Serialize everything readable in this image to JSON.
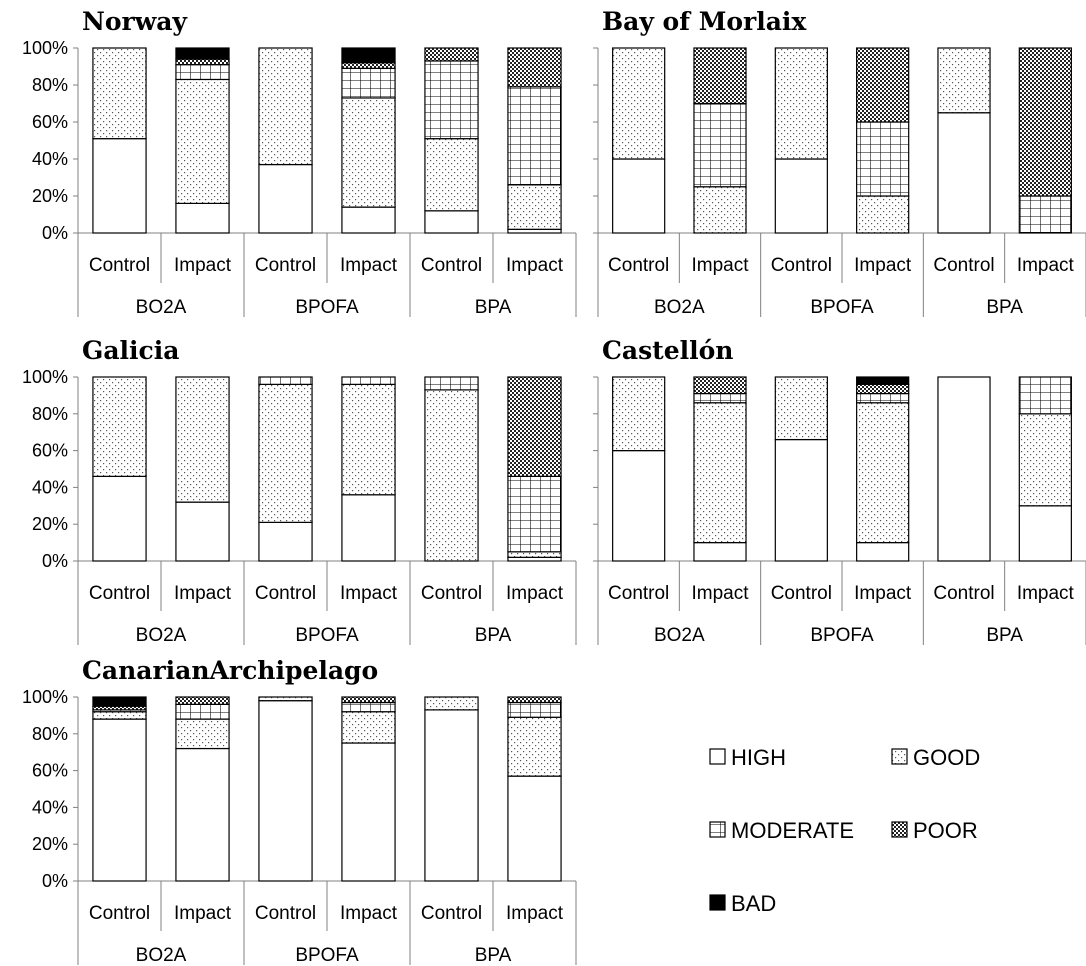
{
  "legend": [
    {
      "key": "HIGH",
      "label": "HIGH"
    },
    {
      "key": "GOOD",
      "label": "GOOD"
    },
    {
      "key": "MODERATE",
      "label": "MODERATE"
    },
    {
      "key": "POOR",
      "label": "POOR"
    },
    {
      "key": "BAD",
      "label": "BAD"
    }
  ],
  "chart_data": [
    {
      "type": "bar",
      "stacked": true,
      "title": "Norway",
      "groups": [
        "BO2A",
        "BPOFA",
        "BPA"
      ],
      "categories": [
        "Control",
        "Impact",
        "Control",
        "Impact",
        "Control",
        "Impact"
      ],
      "yticks": [
        "0%",
        "20%",
        "40%",
        "60%",
        "80%",
        "100%"
      ],
      "ylim": [
        0,
        100
      ],
      "series": [
        {
          "name": "HIGH",
          "values": [
            51,
            16,
            37,
            14,
            12,
            2
          ]
        },
        {
          "name": "GOOD",
          "values": [
            49,
            67,
            63,
            59,
            39,
            24
          ]
        },
        {
          "name": "MODERATE",
          "values": [
            0,
            8,
            0,
            16,
            42,
            53
          ]
        },
        {
          "name": "POOR",
          "values": [
            0,
            3,
            0,
            3,
            7,
            21
          ]
        },
        {
          "name": "BAD",
          "values": [
            0,
            6,
            0,
            8,
            0,
            0
          ]
        }
      ]
    },
    {
      "type": "bar",
      "stacked": true,
      "title": "Bay of Morlaix",
      "groups": [
        "BO2A",
        "BPOFA",
        "BPA"
      ],
      "categories": [
        "Control",
        "Impact",
        "Control",
        "Impact",
        "Control",
        "Impact"
      ],
      "yticks": [],
      "ylim": [
        0,
        100
      ],
      "series": [
        {
          "name": "HIGH",
          "values": [
            40,
            0,
            40,
            0,
            65,
            0
          ]
        },
        {
          "name": "GOOD",
          "values": [
            60,
            25,
            60,
            20,
            35,
            0
          ]
        },
        {
          "name": "MODERATE",
          "values": [
            0,
            45,
            0,
            40,
            0,
            20
          ]
        },
        {
          "name": "POOR",
          "values": [
            0,
            30,
            0,
            40,
            0,
            80
          ]
        },
        {
          "name": "BAD",
          "values": [
            0,
            0,
            0,
            0,
            0,
            0
          ]
        }
      ]
    },
    {
      "type": "bar",
      "stacked": true,
      "title": "Galicia",
      "groups": [
        "BO2A",
        "BPOFA",
        "BPA"
      ],
      "categories": [
        "Control",
        "Impact",
        "Control",
        "Impact",
        "Control",
        "Impact"
      ],
      "yticks": [
        "0%",
        "20%",
        "40%",
        "60%",
        "80%",
        "100%"
      ],
      "ylim": [
        0,
        100
      ],
      "series": [
        {
          "name": "HIGH",
          "values": [
            46,
            32,
            21,
            36,
            0,
            2
          ]
        },
        {
          "name": "GOOD",
          "values": [
            54,
            68,
            75,
            60,
            93,
            3
          ]
        },
        {
          "name": "MODERATE",
          "values": [
            0,
            0,
            4,
            4,
            7,
            41
          ]
        },
        {
          "name": "POOR",
          "values": [
            0,
            0,
            0,
            0,
            0,
            54
          ]
        },
        {
          "name": "BAD",
          "values": [
            0,
            0,
            0,
            0,
            0,
            0
          ]
        }
      ]
    },
    {
      "type": "bar",
      "stacked": true,
      "title": "Castellón",
      "groups": [
        "BO2A",
        "BPOFA",
        "BPA"
      ],
      "categories": [
        "Control",
        "Impact",
        "Control",
        "Impact",
        "Control",
        "Impact"
      ],
      "yticks": [],
      "ylim": [
        0,
        100
      ],
      "series": [
        {
          "name": "HIGH",
          "values": [
            60,
            10,
            66,
            10,
            100,
            30
          ]
        },
        {
          "name": "GOOD",
          "values": [
            40,
            76,
            34,
            76,
            0,
            50
          ]
        },
        {
          "name": "MODERATE",
          "values": [
            0,
            5,
            0,
            5,
            0,
            20
          ]
        },
        {
          "name": "POOR",
          "values": [
            0,
            9,
            0,
            5,
            0,
            0
          ]
        },
        {
          "name": "BAD",
          "values": [
            0,
            0,
            0,
            4,
            0,
            0
          ]
        }
      ]
    },
    {
      "type": "bar",
      "stacked": true,
      "title": "CanarianArchipelago",
      "groups": [
        "BO2A",
        "BPOFA",
        "BPA"
      ],
      "categories": [
        "Control",
        "Impact",
        "Control",
        "Impact",
        "Control",
        "Impact"
      ],
      "yticks": [
        "0%",
        "20%",
        "40%",
        "60%",
        "80%",
        "100%"
      ],
      "ylim": [
        0,
        100
      ],
      "series": [
        {
          "name": "HIGH",
          "values": [
            88,
            72,
            98,
            75,
            93,
            57
          ]
        },
        {
          "name": "GOOD",
          "values": [
            4,
            16,
            2,
            17,
            7,
            32
          ]
        },
        {
          "name": "MODERATE",
          "values": [
            1,
            8,
            0,
            5,
            0,
            8
          ]
        },
        {
          "name": "POOR",
          "values": [
            2,
            4,
            0,
            3,
            0,
            3
          ]
        },
        {
          "name": "BAD",
          "values": [
            5,
            0,
            0,
            0,
            0,
            0
          ]
        }
      ]
    }
  ]
}
